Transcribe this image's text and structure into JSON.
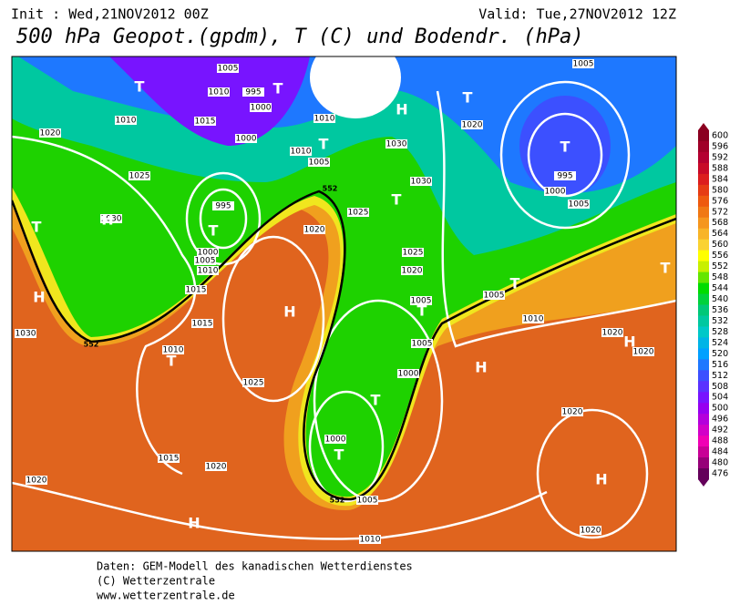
{
  "header": {
    "init": "Init : Wed,21NOV2012 00Z",
    "valid": "Valid: Tue,27NOV2012 12Z",
    "title": "500 hPa Geopot.(gpdm), T (C) und Bodendr. (hPa)"
  },
  "map": {
    "pressure_labels": [
      1005,
      1010,
      995,
      1000,
      1010,
      1015,
      1020,
      1000,
      1010,
      1010,
      1005,
      1025,
      1030,
      995,
      1025,
      1020,
      1030,
      1000,
      1005,
      1010,
      1025,
      1020,
      1015,
      1015,
      1030,
      1010,
      1025,
      1005,
      1005,
      1000,
      1000,
      1015,
      1020,
      1020,
      1005,
      1010,
      1020,
      1020,
      1020,
      1010,
      1005,
      1020,
      1030,
      1005,
      995,
      1000,
      1005,
      1020
    ],
    "system_labels": [
      "T",
      "T",
      "H",
      "T",
      "T",
      "T",
      "T",
      "H",
      "T",
      "T",
      "H",
      "H",
      "T",
      "T",
      "T",
      "H",
      "T",
      "T",
      "H",
      "H",
      "H",
      "T"
    ],
    "contour_labels": [
      552,
      552,
      552
    ]
  },
  "legend": {
    "labels": [
      600,
      596,
      592,
      588,
      584,
      580,
      576,
      572,
      568,
      564,
      560,
      556,
      552,
      548,
      544,
      540,
      536,
      532,
      528,
      524,
      520,
      516,
      512,
      508,
      504,
      500,
      496,
      492,
      488,
      484,
      480,
      476
    ],
    "colors": [
      "#8b0020",
      "#a00028",
      "#b40030",
      "#c80a28",
      "#dc1e1e",
      "#e63c14",
      "#ee5a0f",
      "#f07814",
      "#f5961e",
      "#f8b428",
      "#fad232",
      "#ffff00",
      "#c8f000",
      "#64e600",
      "#00dc00",
      "#00d23c",
      "#00c878",
      "#00c8a0",
      "#00c8c8",
      "#00b4e6",
      "#00a0ff",
      "#1e78ff",
      "#3c50ff",
      "#5a32ff",
      "#7814ff",
      "#9600f0",
      "#b400dc",
      "#d200c8",
      "#f000b4",
      "#c80096",
      "#960078",
      "#64005a"
    ]
  },
  "footer": [
    "Daten: GEM-Modell des kanadischen Wetterdienstes",
    "(C) Wetterzentrale",
    "www.wetterzentrale.de"
  ]
}
